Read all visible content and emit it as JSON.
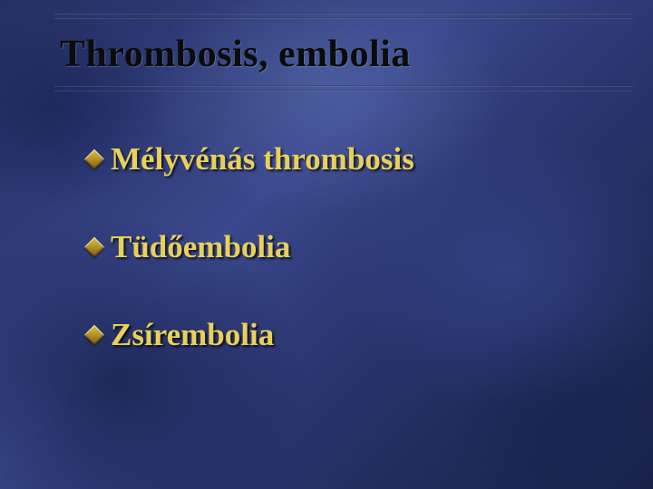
{
  "slide": {
    "title": "Thrombosis, embolia",
    "items": [
      {
        "label": "Mélyvénás thrombosis"
      },
      {
        "label": "Tüdőembolia"
      },
      {
        "label": "Zsírembolia"
      }
    ],
    "style": {
      "title_color": "#0b0b0b",
      "title_fontsize_pt": 32,
      "item_text_color": "#e8d05a",
      "item_fontsize_pt": 26,
      "bullet_shape": "diamond",
      "bullet_gradient": [
        "#d8c04a",
        "#b8962a",
        "#7a5a12"
      ],
      "background_gradient": [
        "#252f63",
        "#2e3a75",
        "#3a488c",
        "#2b3670",
        "#212a5a",
        "#1a2248"
      ],
      "rule_color_dark": "#000000",
      "rule_color_light": "#8a9ac8",
      "font_family": "Times New Roman"
    }
  }
}
